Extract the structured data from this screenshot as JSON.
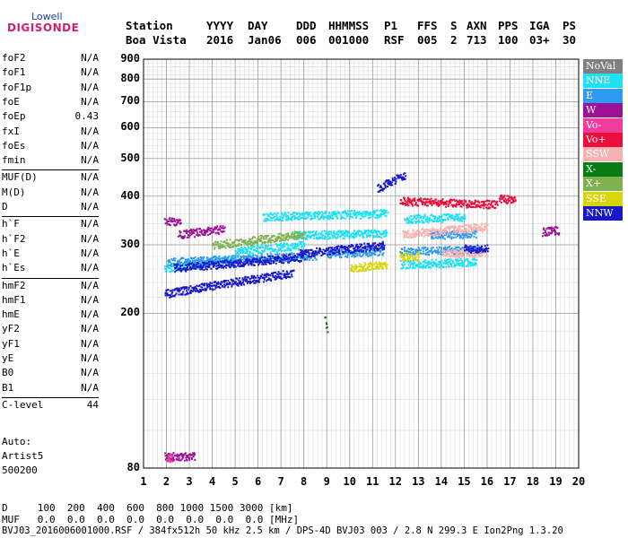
{
  "logo": {
    "top": "Lowell",
    "bottom": "DIGISONDE"
  },
  "header": {
    "labels": [
      "Station",
      "YYYY",
      "DAY",
      "DDD",
      "HHMMSS",
      "P1",
      "FFS",
      "S",
      "AXN",
      "PPS",
      "IGA",
      "PS"
    ],
    "values": [
      "Boa Vista",
      "2016",
      "Jan06",
      "006",
      "001000",
      "RSF",
      "005",
      "2",
      "713",
      "100",
      "03+",
      "30"
    ]
  },
  "parameters": [
    {
      "label": "foF2",
      "value": "N/A"
    },
    {
      "label": "foF1",
      "value": "N/A"
    },
    {
      "label": "foF1p",
      "value": "N/A"
    },
    {
      "label": "foE",
      "value": "N/A"
    },
    {
      "label": "foEp",
      "value": "0.43"
    },
    {
      "label": "fxI",
      "value": "N/A"
    },
    {
      "label": "foEs",
      "value": "N/A"
    },
    {
      "label": "fmin",
      "value": "N/A"
    },
    {
      "label": "MUF(D)",
      "value": "N/A"
    },
    {
      "label": "M(D)",
      "value": "N/A"
    },
    {
      "label": "D",
      "value": "N/A"
    },
    {
      "label": "h`F",
      "value": "N/A"
    },
    {
      "label": "h`F2",
      "value": "N/A"
    },
    {
      "label": "h`E",
      "value": "N/A"
    },
    {
      "label": "h`Es",
      "value": "N/A"
    },
    {
      "label": "hmF2",
      "value": "N/A"
    },
    {
      "label": "hmF1",
      "value": "N/A"
    },
    {
      "label": "hmE",
      "value": "N/A"
    },
    {
      "label": "yF2",
      "value": "N/A"
    },
    {
      "label": "yF1",
      "value": "N/A"
    },
    {
      "label": "yE",
      "value": "N/A"
    },
    {
      "label": "B0",
      "value": "N/A"
    },
    {
      "label": "B1",
      "value": "N/A"
    },
    {
      "label": "C-level",
      "value": "44"
    }
  ],
  "autoscale": {
    "label": "Auto:",
    "name": "Artist5",
    "version": "500200"
  },
  "legend": [
    {
      "label": "NoVal",
      "color": "#808080"
    },
    {
      "label": "NNE",
      "color": "#1fe0f5"
    },
    {
      "label": "E",
      "color": "#2f9bf0"
    },
    {
      "label": "W",
      "color": "#9c1296"
    },
    {
      "label": "Vo-",
      "color": "#f03c9c"
    },
    {
      "label": "Vo+",
      "color": "#ea0e3a"
    },
    {
      "label": "SSW",
      "color": "#f5b2b0"
    },
    {
      "label": "X-",
      "color": "#0a7a12"
    },
    {
      "label": "X+",
      "color": "#7db24f"
    },
    {
      "label": "SSE",
      "color": "#d6d60a"
    },
    {
      "label": "NNW",
      "color": "#1818c8"
    }
  ],
  "footer": {
    "d_row": "D     100  200  400  600  800 1000 1500 3000 [km]",
    "muf_row": "MUF   0.0  0.0  0.0  0.0  0.0  0.0  0.0  0.0 [MHz]",
    "file_row": "BVJ03_2016006001000.RSF / 384fx512h 50 kHz 2.5 km / DPS-4D BVJ03 003 / 2.8 N 299.3 E Ion2Png 1.3.20"
  },
  "chart_data": {
    "type": "scatter",
    "title": "",
    "xlabel": "",
    "ylabel": "",
    "xlim": [
      1,
      20
    ],
    "ylim": [
      80,
      900
    ],
    "x_ticks": [
      1,
      2,
      3,
      4,
      5,
      6,
      7,
      8,
      9,
      10,
      11,
      12,
      13,
      14,
      15,
      16,
      17,
      18,
      19,
      20
    ],
    "y_ticks": [
      80,
      200,
      300,
      400,
      500,
      600,
      700,
      800,
      900
    ],
    "y_scale": "log",
    "grid": true,
    "series": [
      {
        "name": "NNE",
        "color": "#1fe0f5",
        "traces": [
          {
            "x": [
              1.9,
              5.0
            ],
            "y": [
              262,
              275
            ]
          },
          {
            "x": [
              5.0,
              8.0
            ],
            "y": [
              290,
              300
            ]
          },
          {
            "x": [
              6.2,
              11.6
            ],
            "y": [
              355,
              362
            ]
          },
          {
            "x": [
              7.5,
              11.6
            ],
            "y": [
              318,
              322
            ]
          },
          {
            "x": [
              12.2,
              15.5
            ],
            "y": [
              268,
              272
            ]
          },
          {
            "x": [
              12.4,
              15.0
            ],
            "y": [
              350,
              355
            ]
          }
        ]
      },
      {
        "name": "E",
        "color": "#2f9bf0",
        "traces": [
          {
            "x": [
              2.0,
              8.5
            ],
            "y": [
              272,
              282
            ]
          },
          {
            "x": [
              9.0,
              11.5
            ],
            "y": [
              285,
              290
            ]
          },
          {
            "x": [
              12.2,
              15.8
            ],
            "y": [
              290,
              292
            ]
          },
          {
            "x": [
              13.5,
              15.5
            ],
            "y": [
              318,
              322
            ]
          }
        ]
      },
      {
        "name": "W",
        "color": "#9c1296",
        "traces": [
          {
            "x": [
              1.9,
              2.6
            ],
            "y": [
              345,
              345
            ]
          },
          {
            "x": [
              2.5,
              4.5
            ],
            "y": [
              320,
              330
            ]
          },
          {
            "x": [
              18.4,
              19.1
            ],
            "y": [
              325,
              328
            ]
          },
          {
            "x": [
              1.9,
              3.2
            ],
            "y": [
              86,
              86
            ]
          }
        ]
      },
      {
        "name": "Vo-",
        "color": "#f03c9c",
        "traces": [
          {
            "x": [
              2.0,
              2.2
            ],
            "y": [
              85,
              85
            ]
          }
        ]
      },
      {
        "name": "Vo+",
        "color": "#ea0e3a",
        "traces": [
          {
            "x": [
              12.2,
              16.4
            ],
            "y": [
              390,
              382
            ]
          },
          {
            "x": [
              16.5,
              17.2
            ],
            "y": [
              395,
              392
            ]
          }
        ]
      },
      {
        "name": "SSW",
        "color": "#f5b2b0",
        "traces": [
          {
            "x": [
              12.3,
              16.0
            ],
            "y": [
              320,
              335
            ]
          },
          {
            "x": [
              14.0,
              16.0
            ],
            "y": [
              285,
              288
            ]
          }
        ]
      },
      {
        "name": "X-",
        "color": "#0a7a12",
        "traces": [
          {
            "x": [
              8.9,
              9.0
            ],
            "y": [
              195,
              182
            ]
          }
        ]
      },
      {
        "name": "X+",
        "color": "#7db24f",
        "traces": [
          {
            "x": [
              4.0,
              8.0
            ],
            "y": [
              300,
              320
            ]
          }
        ]
      },
      {
        "name": "SSE",
        "color": "#d6d60a",
        "traces": [
          {
            "x": [
              10.0,
              11.6
            ],
            "y": [
              262,
              268
            ]
          },
          {
            "x": [
              12.2,
              13.0
            ],
            "y": [
              280,
              282
            ]
          }
        ]
      },
      {
        "name": "NNW",
        "color": "#1818c8",
        "traces": [
          {
            "x": [
              1.9,
              7.5
            ],
            "y": [
              225,
              255
            ]
          },
          {
            "x": [
              2.3,
              8.0
            ],
            "y": [
              262,
              280
            ]
          },
          {
            "x": [
              7.8,
              11.5
            ],
            "y": [
              286,
              300
            ]
          },
          {
            "x": [
              11.2,
              12.4
            ],
            "y": [
              420,
              455
            ]
          },
          {
            "x": [
              15.0,
              16.0
            ],
            "y": [
              294,
              294
            ]
          }
        ]
      }
    ]
  }
}
